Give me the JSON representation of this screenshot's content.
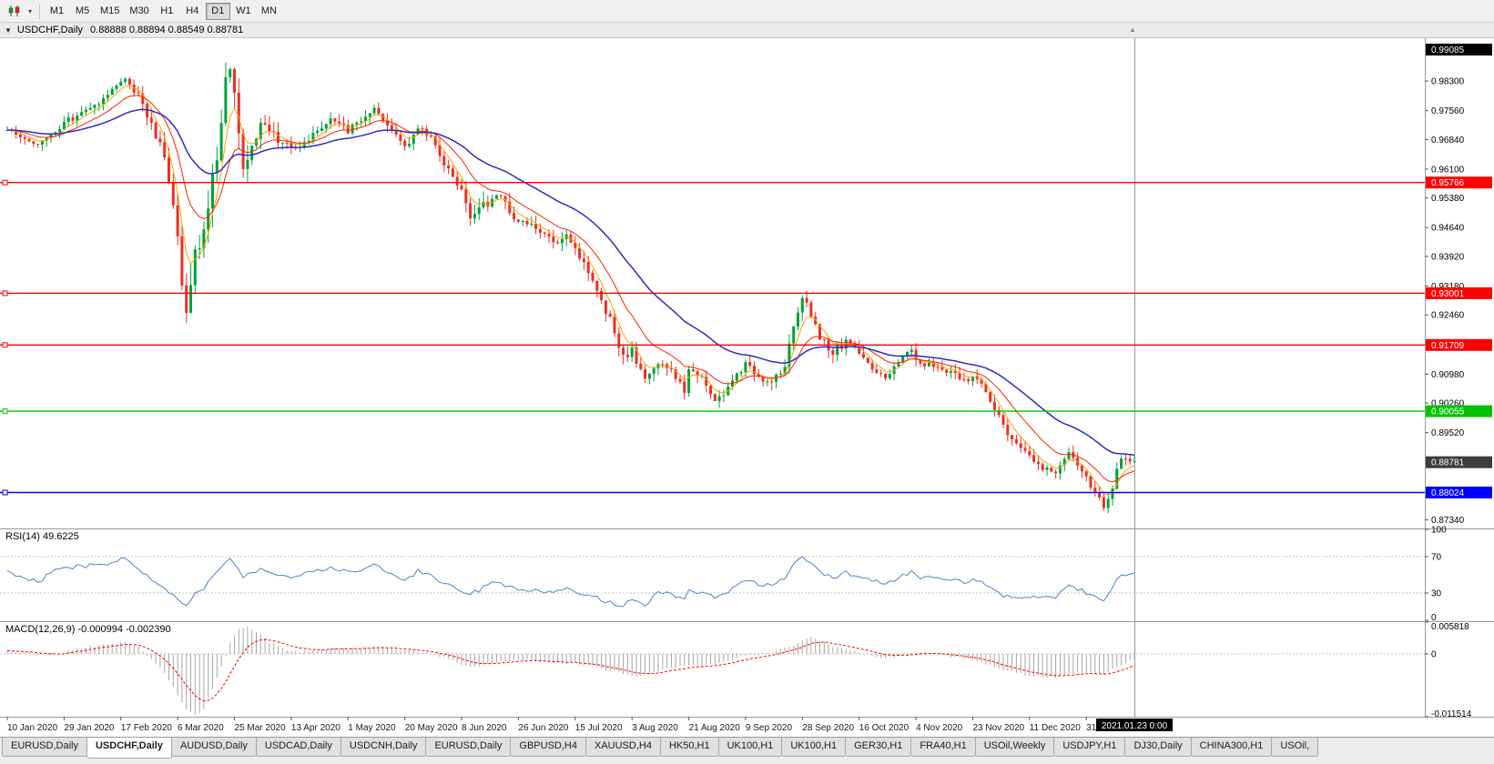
{
  "toolbar": {
    "timeframes": [
      "M1",
      "M5",
      "M15",
      "M30",
      "H1",
      "H4",
      "D1",
      "W1",
      "MN"
    ],
    "active_timeframe": "D1"
  },
  "chart_header": {
    "symbol": "USDCHF,Daily",
    "ohlc": "0.88888 0.88894 0.88549 0.88781",
    "open": "0.88888",
    "high": "0.88894",
    "low": "0.88549",
    "close": "0.88781"
  },
  "indicators": {
    "rsi_label": "RSI(14) 49.6225",
    "macd_label": "MACD(12,26,9) -0.000994 -0.002390"
  },
  "tabs": {
    "active_index": 1,
    "items": [
      "EURUSD,Daily",
      "USDCHF,Daily",
      "AUDUSD,Daily",
      "USDCAD,Daily",
      "USDCNH,Daily",
      "EURUSD,Daily",
      "GBPUSD,H4",
      "XAUUSD,H4",
      "HK50,H1",
      "UK100,H1",
      "UK100,H1",
      "GER30,H1",
      "FRA40,H1",
      "USOil,Weekly",
      "USDJPY,H1",
      "DJ30,Daily",
      "CHINA300,H1",
      "USOil,"
    ],
    "scroll_note": ""
  },
  "colors": {
    "up": "#00a13b",
    "down": "#ee2e24",
    "ma_fast": "#f5a800",
    "ma_mid": "#ff2200",
    "ma_slow": "#2d2dc4",
    "rsi": "#4f86c6",
    "macd_hist": "#a6a6a6",
    "macd_signal": "#ff0000",
    "hline_red": "#ff0000",
    "hline_green": "#00c400",
    "hline_blue": "#0000ff",
    "badge_black": "#000000",
    "badge_current": "#3c3c3c",
    "axis_text": "#000000",
    "date_text": "#1a1a1a",
    "separator": "#9a9a9a"
  },
  "chart_data": {
    "type": "candlestick",
    "symbol": "USDCHF",
    "timeframe": "Daily",
    "bars": 259,
    "x_range": "10 Jan 2020 - 23 Jan 2021",
    "price_range": {
      "min": 0.8715,
      "max": 0.9937
    },
    "price_axis_ticks": [
      "0.98300",
      "0.97560",
      "0.96840",
      "0.96100",
      "0.95380",
      "0.94640",
      "0.93920",
      "0.93180",
      "0.92460",
      "0.91720",
      "0.90980",
      "0.90260",
      "0.89520",
      "0.87340"
    ],
    "high_badge": "0.99085",
    "current_price_badge": "0.88781",
    "time_badge": "2021.01.23 0:00",
    "hlines": [
      {
        "label": "0.95766",
        "value": 0.95766,
        "color_key": "hline_red"
      },
      {
        "label": "0.93001",
        "value": 0.93001,
        "color_key": "hline_red"
      },
      {
        "label": "0.91709",
        "value": 0.91709,
        "color_key": "hline_red"
      },
      {
        "label": "0.90055",
        "value": 0.90055,
        "color_key": "hline_green"
      },
      {
        "label": "0.88024",
        "value": 0.88024,
        "color_key": "hline_blue"
      }
    ],
    "date_labels": [
      {
        "label": "10 Jan 2020",
        "bar": 0
      },
      {
        "label": "29 Jan 2020",
        "bar": 13
      },
      {
        "label": "17 Feb 2020",
        "bar": 26
      },
      {
        "label": "6 Mar 2020",
        "bar": 39
      },
      {
        "label": "25 Mar 2020",
        "bar": 52
      },
      {
        "label": "13 Apr 2020",
        "bar": 65
      },
      {
        "label": "1 May 2020",
        "bar": 78
      },
      {
        "label": "20 May 2020",
        "bar": 91
      },
      {
        "label": "8 Jun 2020",
        "bar": 104
      },
      {
        "label": "26 Jun 2020",
        "bar": 117
      },
      {
        "label": "15 Jul 2020",
        "bar": 130
      },
      {
        "label": "3 Aug 2020",
        "bar": 143
      },
      {
        "label": "21 Aug 2020",
        "bar": 156
      },
      {
        "label": "9 Sep 2020",
        "bar": 169
      },
      {
        "label": "28 Sep 2020",
        "bar": 182
      },
      {
        "label": "16 Oct 2020",
        "bar": 195
      },
      {
        "label": "4 Nov 2020",
        "bar": 208
      },
      {
        "label": "23 Nov 2020",
        "bar": 221
      },
      {
        "label": "11 Dec 2020",
        "bar": 234
      },
      {
        "label": "31 Dec 2020",
        "bar": 247
      }
    ],
    "moving_average_periods": {
      "fast": 5,
      "mid": 13,
      "slow": 34
    },
    "close_path_anchors": [
      [
        0,
        0.9715
      ],
      [
        4,
        0.969
      ],
      [
        7,
        0.967
      ],
      [
        10,
        0.97
      ],
      [
        13,
        0.9725
      ],
      [
        16,
        0.9745
      ],
      [
        20,
        0.977
      ],
      [
        24,
        0.9805
      ],
      [
        27,
        0.9835
      ],
      [
        30,
        0.9795
      ],
      [
        33,
        0.972
      ],
      [
        36,
        0.965
      ],
      [
        38,
        0.952
      ],
      [
        40,
        0.933
      ],
      [
        41,
        0.927
      ],
      [
        43,
        0.939
      ],
      [
        45,
        0.946
      ],
      [
        47,
        0.958
      ],
      [
        49,
        0.972
      ],
      [
        50,
        0.984
      ],
      [
        51,
        0.986
      ],
      [
        52,
        0.978
      ],
      [
        54,
        0.961
      ],
      [
        56,
        0.967
      ],
      [
        58,
        0.972
      ],
      [
        61,
        0.9695
      ],
      [
        65,
        0.9655
      ],
      [
        68,
        0.968
      ],
      [
        71,
        0.9705
      ],
      [
        74,
        0.974
      ],
      [
        76,
        0.972
      ],
      [
        78,
        0.9705
      ],
      [
        81,
        0.973
      ],
      [
        84,
        0.9755
      ],
      [
        87,
        0.9725
      ],
      [
        89,
        0.969
      ],
      [
        91,
        0.966
      ],
      [
        94,
        0.971
      ],
      [
        97,
        0.9695
      ],
      [
        100,
        0.9625
      ],
      [
        102,
        0.959
      ],
      [
        104,
        0.9565
      ],
      [
        106,
        0.9485
      ],
      [
        109,
        0.952
      ],
      [
        112,
        0.9545
      ],
      [
        115,
        0.9505
      ],
      [
        117,
        0.9485
      ],
      [
        121,
        0.947
      ],
      [
        125,
        0.9425
      ],
      [
        128,
        0.945
      ],
      [
        130,
        0.9405
      ],
      [
        133,
        0.9355
      ],
      [
        136,
        0.9285
      ],
      [
        139,
        0.9205
      ],
      [
        141,
        0.914
      ],
      [
        143,
        0.9155
      ],
      [
        146,
        0.9085
      ],
      [
        149,
        0.9125
      ],
      [
        152,
        0.9105
      ],
      [
        155,
        0.9055
      ],
      [
        156,
        0.911
      ],
      [
        159,
        0.9085
      ],
      [
        162,
        0.9025
      ],
      [
        165,
        0.906
      ],
      [
        169,
        0.913
      ],
      [
        172,
        0.9095
      ],
      [
        175,
        0.9075
      ],
      [
        178,
        0.9125
      ],
      [
        180,
        0.922
      ],
      [
        182,
        0.9295
      ],
      [
        184,
        0.9245
      ],
      [
        186,
        0.9185
      ],
      [
        189,
        0.9155
      ],
      [
        192,
        0.9175
      ],
      [
        195,
        0.915
      ],
      [
        198,
        0.9105
      ],
      [
        201,
        0.9085
      ],
      [
        204,
        0.913
      ],
      [
        207,
        0.9155
      ],
      [
        209,
        0.9125
      ],
      [
        212,
        0.912
      ],
      [
        216,
        0.91
      ],
      [
        219,
        0.9085
      ],
      [
        221,
        0.909
      ],
      [
        224,
        0.906
      ],
      [
        226,
        0.9015
      ],
      [
        228,
        0.8965
      ],
      [
        231,
        0.8925
      ],
      [
        234,
        0.889
      ],
      [
        237,
        0.8862
      ],
      [
        240,
        0.8852
      ],
      [
        242,
        0.8885
      ],
      [
        243,
        0.89
      ],
      [
        245,
        0.887
      ],
      [
        247,
        0.8842
      ],
      [
        249,
        0.8805
      ],
      [
        251,
        0.8765
      ],
      [
        253,
        0.882
      ],
      [
        255,
        0.8895
      ],
      [
        257,
        0.888
      ],
      [
        258,
        0.8878
      ]
    ],
    "volatility_anchors": [
      [
        0,
        0.003
      ],
      [
        30,
        0.0032
      ],
      [
        36,
        0.006
      ],
      [
        40,
        0.011
      ],
      [
        46,
        0.009
      ],
      [
        50,
        0.012
      ],
      [
        54,
        0.008
      ],
      [
        58,
        0.005
      ],
      [
        70,
        0.0035
      ],
      [
        100,
        0.0035
      ],
      [
        106,
        0.005
      ],
      [
        130,
        0.0035
      ],
      [
        140,
        0.0045
      ],
      [
        160,
        0.0035
      ],
      [
        181,
        0.0045
      ],
      [
        200,
        0.003
      ],
      [
        225,
        0.0035
      ],
      [
        245,
        0.003
      ],
      [
        251,
        0.004
      ],
      [
        258,
        0.0028
      ]
    ],
    "rsi": {
      "period": 14,
      "current": 49.6225,
      "levels": [
        70,
        30
      ],
      "axis_labels": [
        "100",
        "70",
        "30",
        "0"
      ],
      "axis_values": [
        100,
        70,
        30,
        0
      ],
      "path_anchors": [
        [
          0,
          55
        ],
        [
          4,
          45
        ],
        [
          7,
          42
        ],
        [
          10,
          52
        ],
        [
          13,
          58
        ],
        [
          18,
          60
        ],
        [
          24,
          64
        ],
        [
          27,
          67
        ],
        [
          30,
          58
        ],
        [
          33,
          45
        ],
        [
          36,
          35
        ],
        [
          39,
          24
        ],
        [
          41,
          18
        ],
        [
          43,
          30
        ],
        [
          45,
          36
        ],
        [
          48,
          52
        ],
        [
          50,
          66
        ],
        [
          51,
          68
        ],
        [
          52,
          62
        ],
        [
          54,
          48
        ],
        [
          56,
          53
        ],
        [
          58,
          57
        ],
        [
          61,
          52
        ],
        [
          65,
          48
        ],
        [
          68,
          52
        ],
        [
          71,
          55
        ],
        [
          74,
          59
        ],
        [
          78,
          53
        ],
        [
          81,
          56
        ],
        [
          84,
          60
        ],
        [
          87,
          53
        ],
        [
          91,
          45
        ],
        [
          94,
          54
        ],
        [
          97,
          51
        ],
        [
          100,
          40
        ],
        [
          103,
          35
        ],
        [
          106,
          28
        ],
        [
          109,
          36
        ],
        [
          112,
          42
        ],
        [
          115,
          36
        ],
        [
          117,
          34
        ],
        [
          121,
          34
        ],
        [
          125,
          30
        ],
        [
          128,
          35
        ],
        [
          130,
          30
        ],
        [
          133,
          27
        ],
        [
          136,
          23
        ],
        [
          139,
          19
        ],
        [
          141,
          16
        ],
        [
          143,
          22
        ],
        [
          146,
          18
        ],
        [
          149,
          30
        ],
        [
          152,
          28
        ],
        [
          155,
          24
        ],
        [
          156,
          33
        ],
        [
          159,
          30
        ],
        [
          162,
          25
        ],
        [
          165,
          32
        ],
        [
          169,
          45
        ],
        [
          172,
          40
        ],
        [
          175,
          38
        ],
        [
          178,
          47
        ],
        [
          180,
          60
        ],
        [
          182,
          70
        ],
        [
          184,
          62
        ],
        [
          186,
          52
        ],
        [
          189,
          48
        ],
        [
          192,
          52
        ],
        [
          195,
          49
        ],
        [
          198,
          43
        ],
        [
          201,
          40
        ],
        [
          204,
          48
        ],
        [
          207,
          53
        ],
        [
          209,
          48
        ],
        [
          212,
          47
        ],
        [
          216,
          44
        ],
        [
          219,
          42
        ],
        [
          221,
          44
        ],
        [
          224,
          40
        ],
        [
          226,
          34
        ],
        [
          228,
          28
        ],
        [
          231,
          26
        ],
        [
          234,
          27
        ],
        [
          237,
          25
        ],
        [
          240,
          26
        ],
        [
          242,
          36
        ],
        [
          243,
          40
        ],
        [
          245,
          35
        ],
        [
          247,
          30
        ],
        [
          249,
          26
        ],
        [
          251,
          22
        ],
        [
          253,
          35
        ],
        [
          255,
          52
        ],
        [
          257,
          50
        ],
        [
          258,
          49.6
        ]
      ]
    },
    "macd": {
      "fast": 12,
      "slow": 26,
      "signal": 9,
      "main_current": -0.000994,
      "signal_current": -0.00239,
      "range": {
        "min": -0.011514,
        "max": 0.005818
      },
      "axis_labels": [
        {
          "label": "0.005818",
          "value": 0.005818
        },
        {
          "label": "0",
          "value": 0
        },
        {
          "label": "-0.011514",
          "value": -0.011514
        }
      ],
      "hist_anchors": [
        [
          0,
          0.0006
        ],
        [
          5,
          0.0001
        ],
        [
          10,
          -0.0004
        ],
        [
          15,
          0.0008
        ],
        [
          20,
          0.0014
        ],
        [
          24,
          0.0018
        ],
        [
          27,
          0.0021
        ],
        [
          30,
          0.0012
        ],
        [
          33,
          -0.0008
        ],
        [
          36,
          -0.0035
        ],
        [
          39,
          -0.0075
        ],
        [
          41,
          -0.01
        ],
        [
          43,
          -0.0113
        ],
        [
          45,
          -0.01
        ],
        [
          47,
          -0.0065
        ],
        [
          49,
          -0.0025
        ],
        [
          51,
          0.002
        ],
        [
          53,
          0.0046
        ],
        [
          55,
          0.0052
        ],
        [
          57,
          0.004
        ],
        [
          60,
          0.0022
        ],
        [
          63,
          0.001
        ],
        [
          66,
          0.0004
        ],
        [
          70,
          0.0006
        ],
        [
          74,
          0.0011
        ],
        [
          78,
          0.0009
        ],
        [
          82,
          0.0011
        ],
        [
          86,
          0.0012
        ],
        [
          90,
          0.0006
        ],
        [
          94,
          0.0004
        ],
        [
          98,
          -0.0002
        ],
        [
          102,
          -0.0013
        ],
        [
          106,
          -0.0024
        ],
        [
          110,
          -0.002
        ],
        [
          114,
          -0.0012
        ],
        [
          118,
          -0.0011
        ],
        [
          122,
          -0.0013
        ],
        [
          126,
          -0.0015
        ],
        [
          130,
          -0.0017
        ],
        [
          134,
          -0.0023
        ],
        [
          138,
          -0.0031
        ],
        [
          142,
          -0.0038
        ],
        [
          145,
          -0.004
        ],
        [
          148,
          -0.0033
        ],
        [
          152,
          -0.0026
        ],
        [
          156,
          -0.0021
        ],
        [
          160,
          -0.0022
        ],
        [
          164,
          -0.0015
        ],
        [
          168,
          -0.0005
        ],
        [
          172,
          -0.0002
        ],
        [
          176,
          0.0004
        ],
        [
          180,
          0.0016
        ],
        [
          182,
          0.0026
        ],
        [
          184,
          0.0029
        ],
        [
          186,
          0.0024
        ],
        [
          189,
          0.0014
        ],
        [
          192,
          0.0008
        ],
        [
          195,
          0.0003
        ],
        [
          198,
          -0.0004
        ],
        [
          201,
          -0.0008
        ],
        [
          204,
          -0.0004
        ],
        [
          207,
          0.0001
        ],
        [
          210,
          0.0002
        ],
        [
          213,
          -0.0001
        ],
        [
          216,
          -0.0004
        ],
        [
          219,
          -0.0008
        ],
        [
          222,
          -0.0014
        ],
        [
          225,
          -0.0021
        ],
        [
          228,
          -0.0029
        ],
        [
          231,
          -0.0035
        ],
        [
          234,
          -0.0039
        ],
        [
          237,
          -0.0042
        ],
        [
          240,
          -0.0044
        ],
        [
          243,
          -0.0038
        ],
        [
          246,
          -0.0034
        ],
        [
          249,
          -0.0036
        ],
        [
          251,
          -0.0038
        ],
        [
          253,
          -0.003
        ],
        [
          255,
          -0.002
        ],
        [
          257,
          -0.0012
        ],
        [
          258,
          -0.001
        ]
      ]
    }
  }
}
